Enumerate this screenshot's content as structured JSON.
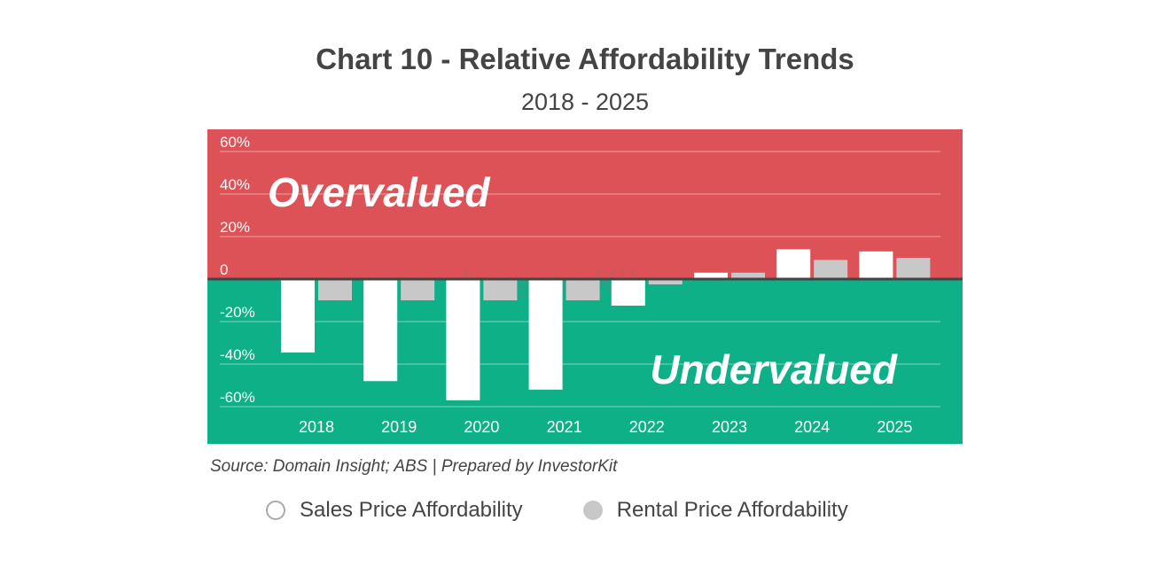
{
  "chart_data": {
    "type": "bar",
    "title": "Chart 10 - Relative Affordability Trends",
    "subtitle": "2018 - 2025",
    "categories": [
      "2018",
      "2019",
      "2020",
      "2021",
      "2022",
      "2023",
      "2024",
      "2025"
    ],
    "series": [
      {
        "name": "Sales Price Affordability",
        "values": [
          -34.5,
          -48,
          -57,
          -52,
          -12.5,
          3,
          14,
          13
        ],
        "color": "#ffffff"
      },
      {
        "name": "Rental Price Affordability",
        "values": [
          -10,
          -10,
          -10,
          -10,
          -2.5,
          3,
          9,
          10
        ],
        "color": "#c8c8c8"
      }
    ],
    "ylim": [
      -70,
      70
    ],
    "yticks": [
      60,
      40,
      20,
      0,
      -20,
      -40,
      -60
    ],
    "ytick_labels": [
      "60%",
      "40%",
      "20%",
      "0",
      "-20%",
      "-40%",
      "-60%"
    ],
    "grid": true,
    "zones": {
      "over_label": "Overvalued",
      "over_color": "#dc5256",
      "under_label": "Undervalued",
      "under_color": "#0eb088"
    },
    "watermark": "InvestorKit",
    "source": "Source: Domain Insight; ABS | Prepared by InvestorKit",
    "legend_position": "bottom"
  }
}
